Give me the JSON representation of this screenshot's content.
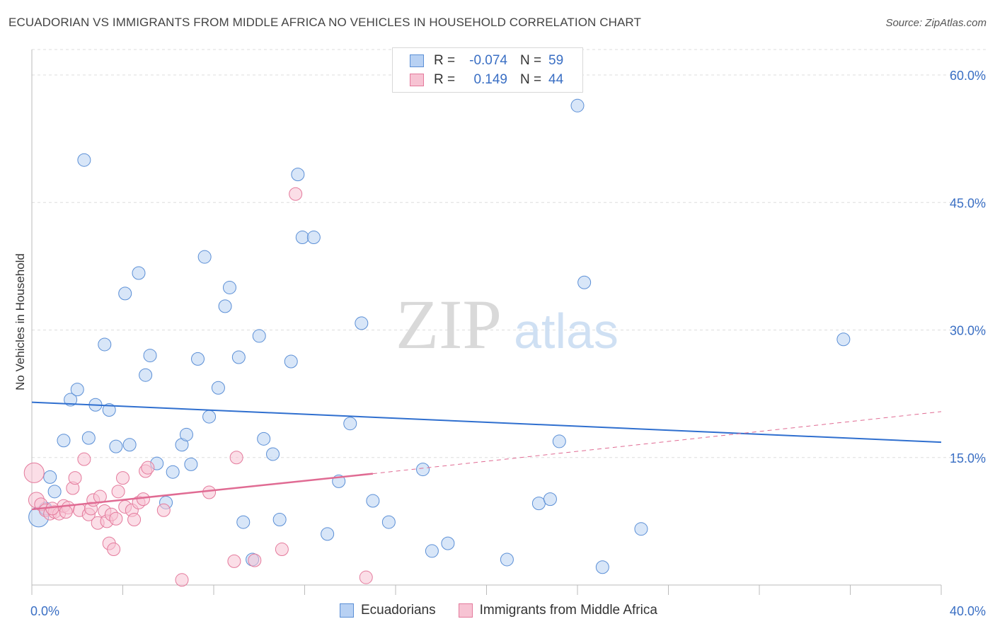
{
  "header": {
    "title": "ECUADORIAN VS IMMIGRANTS FROM MIDDLE AFRICA NO VEHICLES IN HOUSEHOLD CORRELATION CHART",
    "source": "Source: ZipAtlas.com"
  },
  "watermark": {
    "zip": "ZIP",
    "atlas": "atlas"
  },
  "stats_legend": {
    "r_label": "R =",
    "n_label": "N =",
    "rows": [
      {
        "r": "-0.074",
        "n": "59"
      },
      {
        "r": "0.149",
        "n": "44"
      }
    ]
  },
  "colors": {
    "blue_fill": "#b8d1f3",
    "blue_stroke": "#5b8fd6",
    "blue_line": "#2f6fcf",
    "pink_fill": "#f7c3d3",
    "pink_stroke": "#e47a9c",
    "pink_line": "#e06b93",
    "tick_label": "#3a6fc4",
    "grid": "#dddddd"
  },
  "chart_data": {
    "type": "scatter",
    "xlabel": "",
    "ylabel": "No Vehicles in Household",
    "xlim": [
      0,
      40
    ],
    "ylim": [
      0,
      63
    ],
    "x_tick_labels": [
      "0.0%",
      "40.0%"
    ],
    "y_ticks": [
      15,
      30,
      45,
      60
    ],
    "y_tick_labels": [
      "15.0%",
      "30.0%",
      "45.0%",
      "60.0%"
    ],
    "grid": true,
    "legend_position": "top-center",
    "series": [
      {
        "name": "Ecuadorians",
        "color": "#5b8fd6",
        "trend": {
          "x": [
            0,
            40
          ],
          "y": [
            21.5,
            16.8
          ],
          "style": "solid"
        },
        "points": [
          [
            0.3,
            8.0,
            14
          ],
          [
            0.6,
            9.0,
            9
          ],
          [
            0.8,
            12.7,
            9
          ],
          [
            1.0,
            11.0,
            9
          ],
          [
            1.4,
            17.0,
            9
          ],
          [
            1.7,
            21.8,
            9
          ],
          [
            2.0,
            23.0,
            9
          ],
          [
            2.3,
            50.0,
            9
          ],
          [
            2.5,
            17.3,
            9
          ],
          [
            2.8,
            21.2,
            9
          ],
          [
            3.2,
            28.3,
            9
          ],
          [
            3.4,
            20.6,
            9
          ],
          [
            3.7,
            16.3,
            9
          ],
          [
            4.1,
            34.3,
            9
          ],
          [
            4.3,
            16.5,
            9
          ],
          [
            4.7,
            36.7,
            9
          ],
          [
            5.0,
            24.7,
            9
          ],
          [
            5.2,
            27.0,
            9
          ],
          [
            5.5,
            14.3,
            9
          ],
          [
            5.9,
            9.7,
            9
          ],
          [
            6.2,
            13.3,
            9
          ],
          [
            6.6,
            16.5,
            9
          ],
          [
            6.8,
            17.7,
            9
          ],
          [
            7.0,
            14.2,
            9
          ],
          [
            7.3,
            26.6,
            9
          ],
          [
            7.6,
            38.6,
            9
          ],
          [
            7.8,
            19.8,
            9
          ],
          [
            8.2,
            23.2,
            9
          ],
          [
            8.5,
            32.8,
            9
          ],
          [
            8.7,
            35.0,
            9
          ],
          [
            9.1,
            26.8,
            9
          ],
          [
            9.3,
            7.4,
            9
          ],
          [
            9.7,
            3.0,
            9
          ],
          [
            10.0,
            29.3,
            9
          ],
          [
            10.2,
            17.2,
            9
          ],
          [
            10.6,
            15.4,
            9
          ],
          [
            10.9,
            7.7,
            9
          ],
          [
            11.4,
            26.3,
            9
          ],
          [
            11.7,
            48.3,
            9
          ],
          [
            11.9,
            40.9,
            9
          ],
          [
            12.4,
            40.9,
            9
          ],
          [
            13.0,
            6.0,
            9
          ],
          [
            13.5,
            12.2,
            9
          ],
          [
            14.0,
            19.0,
            9
          ],
          [
            14.5,
            30.8,
            9
          ],
          [
            15.0,
            9.9,
            9
          ],
          [
            15.7,
            7.4,
            9
          ],
          [
            17.2,
            13.6,
            9
          ],
          [
            17.6,
            4.0,
            9
          ],
          [
            18.3,
            4.9,
            9
          ],
          [
            20.9,
            3.0,
            9
          ],
          [
            22.3,
            9.6,
            9
          ],
          [
            22.8,
            10.1,
            9
          ],
          [
            23.2,
            16.9,
            9
          ],
          [
            24.0,
            56.4,
            9
          ],
          [
            24.3,
            35.6,
            9
          ],
          [
            25.1,
            2.1,
            9
          ],
          [
            26.8,
            6.6,
            9
          ],
          [
            35.7,
            28.9,
            9
          ]
        ]
      },
      {
        "name": "Immigrants from Middle Africa",
        "color": "#e47a9c",
        "trend": {
          "x": [
            0,
            15
          ],
          "y": [
            8.9,
            13.1
          ],
          "style": "solid",
          "extended": {
            "x": [
              15,
              40
            ],
            "y": [
              13.1,
              20.4
            ],
            "style": "dashed"
          }
        },
        "points": [
          [
            0.1,
            13.2,
            14
          ],
          [
            0.2,
            10.0,
            11
          ],
          [
            0.4,
            9.5,
            9
          ],
          [
            0.6,
            8.8,
            9
          ],
          [
            0.8,
            8.4,
            9
          ],
          [
            1.0,
            8.6,
            9
          ],
          [
            1.2,
            8.4,
            9
          ],
          [
            1.4,
            9.3,
            9
          ],
          [
            1.6,
            9.1,
            9
          ],
          [
            1.8,
            11.4,
            9
          ],
          [
            1.9,
            12.6,
            9
          ],
          [
            2.1,
            8.8,
            9
          ],
          [
            2.3,
            14.8,
            9
          ],
          [
            2.5,
            8.3,
            9
          ],
          [
            2.6,
            9.0,
            9
          ],
          [
            2.7,
            10.0,
            9
          ],
          [
            2.9,
            7.3,
            9
          ],
          [
            3.0,
            10.4,
            9
          ],
          [
            3.2,
            8.7,
            9
          ],
          [
            3.3,
            7.5,
            9
          ],
          [
            3.4,
            4.9,
            9
          ],
          [
            3.5,
            8.3,
            9
          ],
          [
            3.6,
            4.2,
            9
          ],
          [
            3.7,
            7.8,
            9
          ],
          [
            3.8,
            11.0,
            9
          ],
          [
            4.0,
            12.6,
            9
          ],
          [
            4.1,
            9.2,
            9
          ],
          [
            4.4,
            8.8,
            9
          ],
          [
            4.5,
            7.7,
            9
          ],
          [
            4.7,
            9.7,
            9
          ],
          [
            4.9,
            10.1,
            9
          ],
          [
            5.0,
            13.4,
            9
          ],
          [
            5.1,
            13.8,
            9
          ],
          [
            5.8,
            8.8,
            9
          ],
          [
            6.6,
            0.6,
            9
          ],
          [
            7.8,
            10.9,
            9
          ],
          [
            8.9,
            2.8,
            9
          ],
          [
            9.0,
            15.0,
            9
          ],
          [
            9.8,
            2.9,
            9
          ],
          [
            11.0,
            4.2,
            9
          ],
          [
            11.6,
            46.0,
            9
          ],
          [
            14.7,
            0.9,
            9
          ],
          [
            1.5,
            8.6,
            9
          ],
          [
            0.9,
            9.0,
            9
          ]
        ]
      }
    ]
  }
}
